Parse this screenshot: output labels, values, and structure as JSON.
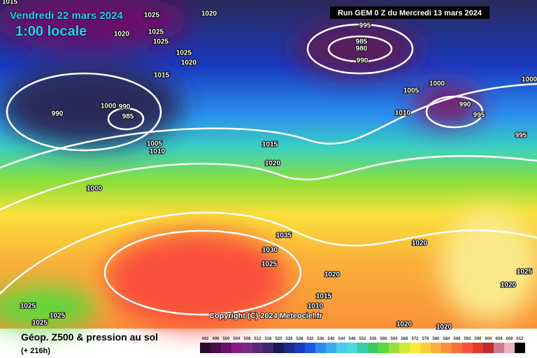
{
  "header": {
    "date": "Vendredi 22 mars 2024",
    "time": "1:00 locale",
    "run": "Run GEM 0 Z du Mercredi 13 mars 2024"
  },
  "copyright": "Copyright (C) 2024 Meteociel.fr",
  "footer": {
    "title": "Géop. Z500 & pression au sol",
    "lead": "(+ 216h)"
  },
  "scale": {
    "labels": [
      "492",
      "496",
      "500",
      "504",
      "508",
      "512",
      "516",
      "520",
      "524",
      "528",
      "532",
      "536",
      "540",
      "544",
      "548",
      "552",
      "556",
      "560",
      "564",
      "568",
      "572",
      "576",
      "580",
      "584",
      "588",
      "592",
      "596",
      "600",
      "604",
      "608",
      "612"
    ],
    "colors": [
      "#2a0a2a",
      "#4a0d4a",
      "#6a106a",
      "#8a1a8a",
      "#7a2a8a",
      "#5a2a7a",
      "#3a2a6a",
      "#1a1a5a",
      "#1a2a8a",
      "#1a3abf",
      "#1a5ae0",
      "#2a8aef",
      "#3aaaef",
      "#4acaef",
      "#4adada",
      "#3acaaa",
      "#3aca6a",
      "#5ada3a",
      "#9ae03a",
      "#d0ea3a",
      "#faea3a",
      "#fad03a",
      "#fab03a",
      "#fa903a",
      "#fa703a",
      "#fa503a",
      "#e03a2a",
      "#c02a2a",
      "#d07a9a",
      "#f0b0c0",
      "#000000"
    ]
  },
  "isobar_labels": [
    "1015",
    "1025",
    "1020",
    "1020",
    "1025",
    "1025",
    "1025",
    "1020",
    "1015",
    "995",
    "985",
    "980",
    "990",
    "1005",
    "1000",
    "990",
    "995",
    "1000",
    "995",
    "1010",
    "1000",
    "990",
    "985",
    "990",
    "1005",
    "1010",
    "1015",
    "1020",
    "1000",
    "1035",
    "1030",
    "1025",
    "1020",
    "1020",
    "1025",
    "1020",
    "1015",
    "1010",
    "1025",
    "1025",
    "1025",
    "1020",
    "1020"
  ]
}
